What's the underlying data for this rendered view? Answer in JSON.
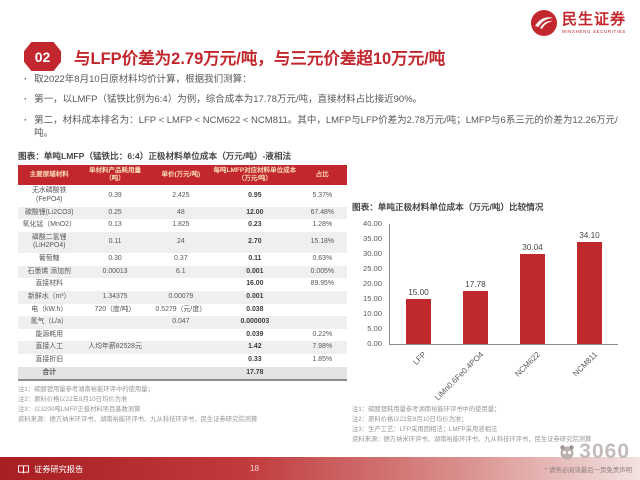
{
  "brand": {
    "name": "民生证券",
    "name_en": "MINSHENG SECURITIES"
  },
  "header": {
    "badge": "02",
    "title": "与LFP价差为2.79万元/吨，与三元价差超10万元/吨"
  },
  "bullets": [
    "取2022年8月10日原材料均价计算，根据我们测算：",
    "第一，以LMFP（锰铁比例为6:4）为例，综合成本为17.78万元/吨，直接材料占比接近90%。",
    "第二，材料成本排名为：LFP < LMFP < NCM622 < NCM811。其中，LMFP与LFP价差为2.78万元/吨；LMFP与6系三元的价差为12.26万元/吨。"
  ],
  "table_section": {
    "caption": "图表：单吨LMFP（锰铁比：6:4）正极材料单位成本（万元/吨）-液相法",
    "columns": [
      "主要原辅材料",
      "单材料产品耗用量（吨）",
      "单价(万元/吨)",
      "每吨LMFP对应材料单位成本（万元/吨）",
      "占比"
    ],
    "rows": [
      {
        "name": "无水磷酸铁(FePO4)",
        "usage": "0.39",
        "price": "2.425",
        "cost": "0.95",
        "share": "5.37%"
      },
      {
        "name": "碳酸锂(Li2CO3)",
        "usage": "0.25",
        "price": "48",
        "cost": "12.00",
        "share": "67.48%"
      },
      {
        "name": "氧化锰（MnO2）",
        "usage": "0.13",
        "price": "1.825",
        "cost": "0.23",
        "share": "1.28%"
      },
      {
        "name": "磷酸二氢锂(LiH2PO4)",
        "usage": "0.11",
        "price": "24",
        "cost": "2.70",
        "share": "15.18%"
      },
      {
        "name": "葡萄糖",
        "usage": "0.30",
        "price": "0.37",
        "cost": "0.11",
        "share": "0.63%"
      },
      {
        "name": "石墨烯 添加剂",
        "usage": "0.00013",
        "price": "6.1",
        "cost": "0.001",
        "share": "0.005%"
      },
      {
        "name": "直接材料",
        "usage": "",
        "price": "",
        "cost": "16.00",
        "share": "89.95%"
      },
      {
        "name": "新鲜水（m³）",
        "usage": "1.34375",
        "price": "0.00079",
        "cost": "0.001",
        "share": ""
      },
      {
        "name": "电（kW.h）",
        "usage": "720（度/吨）",
        "price": "0.5279（元/度）",
        "cost": "0.038",
        "share": ""
      },
      {
        "name": "氮气（L/a）",
        "usage": "",
        "price": "0.047",
        "cost": "0.000003",
        "share": ""
      },
      {
        "name": "能源耗用",
        "usage": "",
        "price": "",
        "cost": "0.039",
        "share": "0.22%"
      },
      {
        "name": "直接人工",
        "usage": "人均年薪82528元",
        "price": "",
        "cost": "1.42",
        "share": "7.98%"
      },
      {
        "name": "直接折旧",
        "usage": "",
        "price": "",
        "cost": "0.33",
        "share": "1.85%"
      },
      {
        "name": "合计",
        "usage": "",
        "price": "",
        "cost": "17.78",
        "share": "",
        "total": true
      }
    ],
    "notes": [
      "注1：碳酸锂用量参考湖南裕能环评中的使用量；",
      "注2：原料价格以22年8月10日均价为准",
      "注3：以3200吨LMFP正极材料项目基数测算"
    ],
    "source": "资料来源：德方纳米环评书、湖南裕能环评书、九从科技环评书，民生证券研究院测算"
  },
  "chart_section": {
    "caption": "图表：单吨正极材料单位成本（万元/吨）比较情况",
    "notes": [
      "注1：碳酸锂耗用量参考湖南裕能环评书中的使用量；",
      "注2：原料价格以22年8月10日均价为准；",
      "注3：生产工艺：LFP采用固相法；LMFP采用液相法"
    ],
    "source": "资料来源：德方纳米环评书、湖南裕能环评书、九从科技环评书，民生证券研究院测算"
  },
  "chart_data": {
    "type": "bar",
    "categories": [
      "LFP",
      "LiMn0.6Fe0.4PO4",
      "NCM622",
      "NCM811"
    ],
    "values": [
      15.0,
      17.78,
      30.04,
      34.1
    ],
    "title": "单吨正极材料单位成本（万元/吨）比较情况",
    "xlabel": "",
    "ylabel": "",
    "ylim": [
      0,
      40
    ],
    "ytick_step": 5,
    "grid": false,
    "legend": false,
    "bar_color": "#c0292b"
  },
  "footer": {
    "report_label": "证券研究报告",
    "page": "18",
    "watermark": "3060",
    "disclaimer": "* 请务必阅读最后一页免责声明"
  },
  "colors": {
    "accent": "#c2272d",
    "bar": "#c0292b"
  }
}
